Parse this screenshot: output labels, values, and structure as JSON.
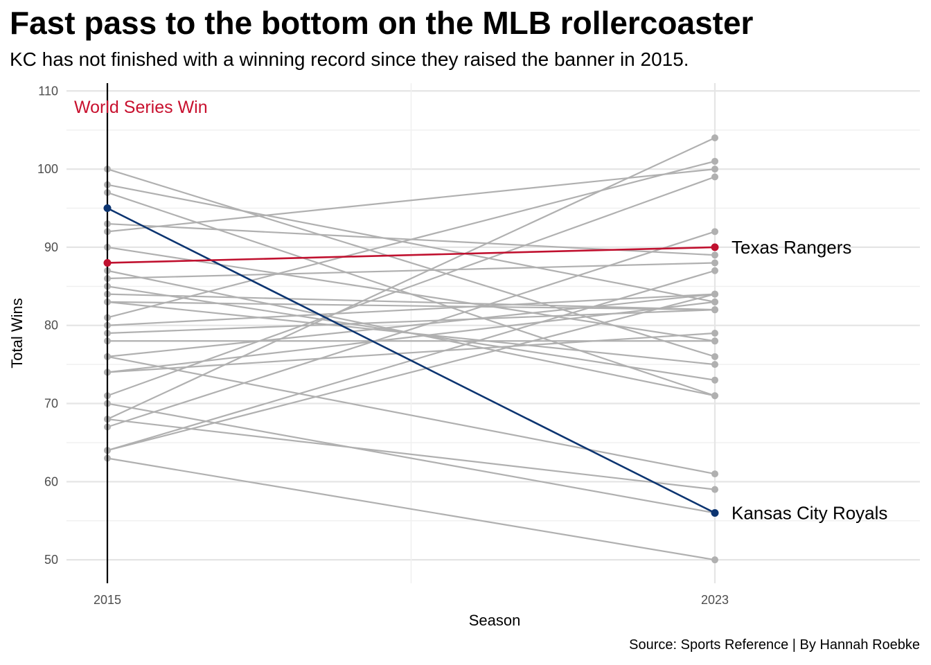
{
  "chart_data": {
    "type": "line",
    "title": "Fast pass to the bottom on the MLB rollercoaster",
    "subtitle": "KC has not finished with a winning record since they raised the banner in 2015.",
    "caption": "Source: Sports Reference | By Hannah Roebke",
    "xlabel": "Season",
    "ylabel": "Total Wins",
    "x": [
      "2015",
      "2023"
    ],
    "ylim": [
      47,
      111
    ],
    "yticks": [
      50,
      60,
      70,
      80,
      90,
      100,
      110
    ],
    "grid": true,
    "legend": "none",
    "annotation": {
      "text": "World Series Win",
      "color": "#c8102e",
      "x": "2015",
      "y": 108
    },
    "reference_line": {
      "x": "2015",
      "color": "#000000"
    },
    "highlight_series": [
      {
        "name": "Kansas City Royals",
        "values": [
          95,
          56
        ],
        "color": "#0c3470"
      },
      {
        "name": "Texas Rangers",
        "values": [
          88,
          90
        ],
        "color": "#c0112f"
      }
    ],
    "background_series_color": "#b0b0b0",
    "background_series": [
      [
        100,
        76
      ],
      [
        98,
        83
      ],
      [
        97,
        71
      ],
      [
        93,
        89
      ],
      [
        92,
        100
      ],
      [
        90,
        78
      ],
      [
        87,
        71
      ],
      [
        86,
        88
      ],
      [
        84,
        82
      ],
      [
        83,
        75
      ],
      [
        81,
        101
      ],
      [
        80,
        84
      ],
      [
        79,
        82
      ],
      [
        78,
        78
      ],
      [
        76,
        61
      ],
      [
        74,
        79
      ],
      [
        74,
        83
      ],
      [
        71,
        99
      ],
      [
        68,
        104
      ],
      [
        68,
        59
      ],
      [
        67,
        92
      ],
      [
        64,
        87
      ],
      [
        63,
        50
      ],
      [
        85,
        73
      ],
      [
        76,
        84
      ],
      [
        83,
        82
      ],
      [
        64,
        84
      ],
      [
        70,
        56
      ]
    ],
    "background_series_note": "",
    "extra_points_2023": []
  }
}
